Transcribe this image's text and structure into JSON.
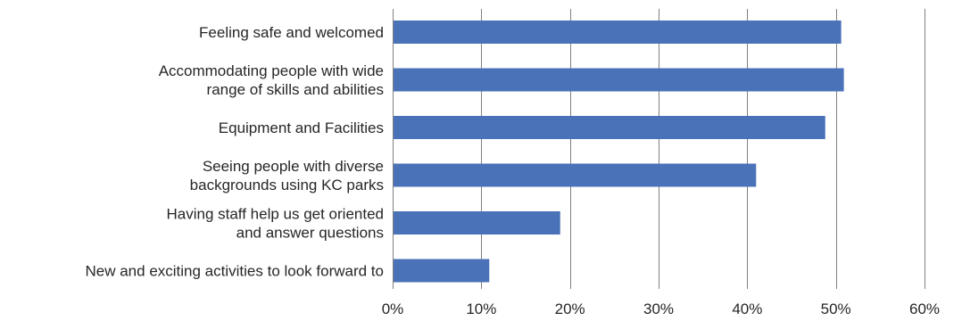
{
  "chart_data": {
    "type": "bar",
    "orientation": "horizontal",
    "categories": [
      [
        "Feeling safe and welcomed"
      ],
      [
        "Accommodating people with wide",
        "range of skills and abilities"
      ],
      [
        "Equipment and Facilities"
      ],
      [
        "Seeing people with diverse",
        "backgrounds using KC parks"
      ],
      [
        "Having staff help us get oriented",
        "and answer questions"
      ],
      [
        "New and exciting activities to look forward to"
      ]
    ],
    "values": [
      50.6,
      50.9,
      48.8,
      41.0,
      18.9,
      10.9
    ],
    "xlim": [
      0,
      60
    ],
    "x_ticks": [
      0,
      10,
      20,
      30,
      40,
      50,
      60
    ],
    "x_tick_labels": [
      "0%",
      "10%",
      "20%",
      "30%",
      "40%",
      "50%",
      "60%"
    ],
    "grid": "vertical",
    "title": "",
    "xlabel": "",
    "ylabel": "",
    "colors": {
      "bar": "#4a72b8",
      "grid": "#7f7f7f",
      "text": "#262626"
    }
  }
}
